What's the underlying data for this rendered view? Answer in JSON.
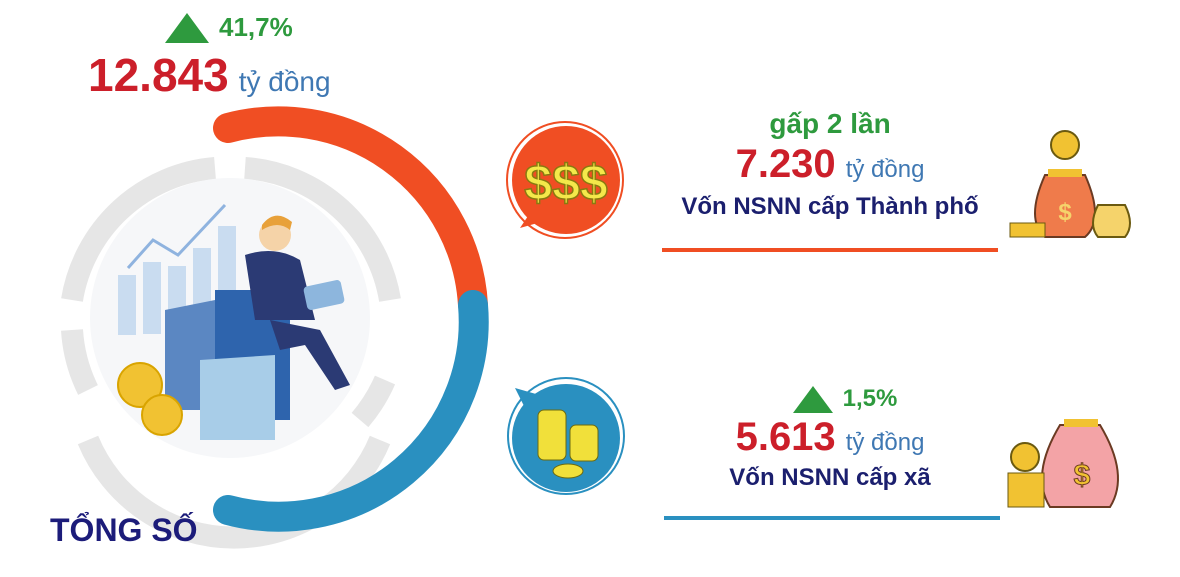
{
  "total": {
    "growth": "41,7%",
    "value": "12.843",
    "unit": "tỷ đồng",
    "label": "TỔNG SỐ"
  },
  "city": {
    "growth": "gấp 2 lần",
    "value": "7.230",
    "unit": "tỷ đồng",
    "label": "Vốn NSNN cấp Thành phố",
    "color": "#f04e23",
    "icon": "dollar-signs-icon"
  },
  "commune": {
    "growth": "1,5%",
    "value": "5.613",
    "unit": "tỷ đồng",
    "label": "Vốn NSNN cấp xã",
    "color": "#2a90c0",
    "icon": "coin-stacks-icon"
  },
  "colors": {
    "growth": "#2e9a3e",
    "value": "#cc1f2a",
    "label": "#1b1f6e",
    "unit": "#3f78b3"
  }
}
